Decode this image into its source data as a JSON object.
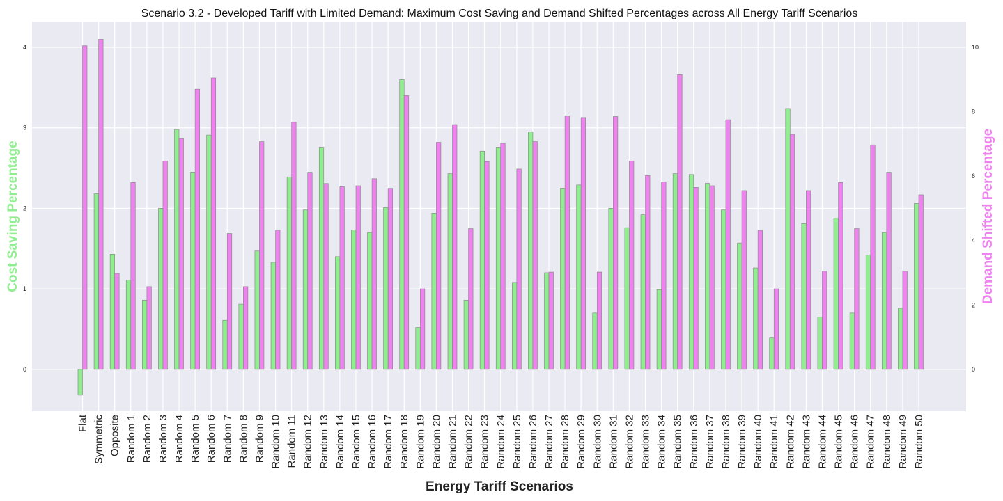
{
  "chart_data": {
    "type": "bar",
    "title": "Scenario 3.2 - Developed Tariff with Limited Demand: Maximum Cost Saving and Demand Shifted Percentages across All Energy Tariff Scenarios",
    "xlabel": "Energy Tariff Scenarios",
    "ylabel_left": "Cost Saving Percentage",
    "ylabel_right": "Demand Shifted Percentage",
    "ylim_left": [
      -0.52,
      4.32
    ],
    "ylim_right": [
      -1.3,
      10.8
    ],
    "yticks_left": [
      0,
      1,
      2,
      3,
      4
    ],
    "yticks_right": [
      0,
      2,
      4,
      6,
      8,
      10
    ],
    "grid": true,
    "colors": {
      "cost": "#90ee90",
      "demand": "#ee82ee",
      "background": "#eaeaf2",
      "grid": "#ffffff",
      "edge": "#8a8a8a"
    },
    "categories": [
      "Flat",
      "Symmetric",
      "Opposite",
      "Random 1",
      "Random 2",
      "Random 3",
      "Random 4",
      "Random 5",
      "Random 6",
      "Random 7",
      "Random 8",
      "Random 9",
      "Random 10",
      "Random 11",
      "Random 12",
      "Random 13",
      "Random 14",
      "Random 15",
      "Random 16",
      "Random 17",
      "Random 18",
      "Random 19",
      "Random 20",
      "Random 21",
      "Random 22",
      "Random 23",
      "Random 24",
      "Random 25",
      "Random 26",
      "Random 27",
      "Random 28",
      "Random 29",
      "Random 30",
      "Random 31",
      "Random 32",
      "Random 33",
      "Random 34",
      "Random 35",
      "Random 36",
      "Random 37",
      "Random 38",
      "Random 39",
      "Random 40",
      "Random 41",
      "Random 42",
      "Random 43",
      "Random 44",
      "Random 45",
      "Random 46",
      "Random 47",
      "Random 48",
      "Random 49",
      "Random 50"
    ],
    "series": [
      {
        "name": "Cost Saving Percentage",
        "axis": "left",
        "values": [
          -0.32,
          2.18,
          1.43,
          1.11,
          0.86,
          2.0,
          2.98,
          2.45,
          2.91,
          0.61,
          0.81,
          1.47,
          1.33,
          2.39,
          1.98,
          2.76,
          1.4,
          1.73,
          1.7,
          2.01,
          3.6,
          0.52,
          1.94,
          2.43,
          0.86,
          2.71,
          2.76,
          1.08,
          2.95,
          1.2,
          2.25,
          2.29,
          0.7,
          2.0,
          1.76,
          1.92,
          0.99,
          2.43,
          2.42,
          2.31,
          1.98,
          1.57,
          1.26,
          0.39,
          3.24,
          1.81,
          0.65,
          1.88,
          0.7,
          1.42,
          1.7,
          0.76,
          2.06
        ]
      },
      {
        "name": "Demand Shifted Percentage",
        "axis": "right",
        "values": [
          10.05,
          10.25,
          2.98,
          5.8,
          2.57,
          6.47,
          7.17,
          8.7,
          9.05,
          4.22,
          2.57,
          7.07,
          4.32,
          7.67,
          6.12,
          5.77,
          5.67,
          5.7,
          5.92,
          5.62,
          8.5,
          2.5,
          7.05,
          7.6,
          4.37,
          6.45,
          7.02,
          6.22,
          7.07,
          3.02,
          7.87,
          7.82,
          3.02,
          7.85,
          6.47,
          6.02,
          5.82,
          9.15,
          5.65,
          5.7,
          7.75,
          5.55,
          4.32,
          2.5,
          7.3,
          5.55,
          3.05,
          5.8,
          4.37,
          6.97,
          6.12,
          3.05,
          5.42
        ]
      }
    ]
  }
}
